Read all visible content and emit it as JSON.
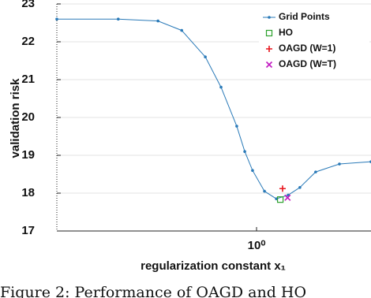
{
  "chart_data": {
    "type": "line",
    "xlabel": "regularization constant x₁",
    "ylabel": "validation risk",
    "caption": "Figure 2: Performance of OAGD and HO",
    "xlog": true,
    "xlim": [
      0.1,
      10
    ],
    "xticks": [
      {
        "value": 1,
        "label": "10⁰"
      }
    ],
    "ylim": [
      17,
      23
    ],
    "yticks": [
      17,
      18,
      19,
      20,
      21,
      22,
      23
    ],
    "grid": true,
    "legend": "upper right",
    "series": [
      {
        "name": "Grid Points",
        "color": "#2a7ab8",
        "marker": "dot",
        "x": [
          0.1,
          0.203,
          0.321,
          0.422,
          0.554,
          0.664,
          0.796,
          0.873,
          0.955,
          1.096,
          1.257,
          1.44,
          1.648,
          1.977,
          2.6,
          3.74
        ],
        "values": [
          22.6,
          22.6,
          22.55,
          22.3,
          21.6,
          20.8,
          19.77,
          19.1,
          18.6,
          18.05,
          17.85,
          17.95,
          18.15,
          18.56,
          18.77,
          18.83
        ]
      },
      {
        "name": "HO",
        "color": "#2ca02c",
        "marker": "square",
        "x": [
          1.315
        ],
        "values": [
          17.83
        ]
      },
      {
        "name": "OAGD (W=1)",
        "color": "#e8141c",
        "marker": "plus",
        "x": [
          1.35
        ],
        "values": [
          18.12
        ]
      },
      {
        "name": "OAGD (W=T)",
        "color": "#c21bc2",
        "marker": "cross",
        "x": [
          1.43
        ],
        "values": [
          17.88
        ]
      }
    ]
  }
}
